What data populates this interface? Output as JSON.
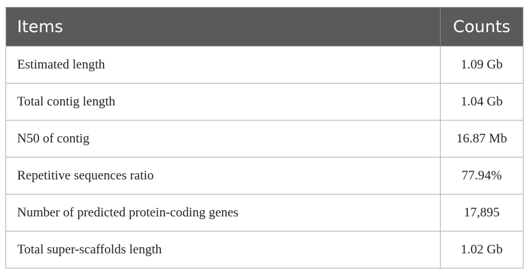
{
  "table": {
    "header": [
      "Items",
      "Counts"
    ],
    "rows": [
      [
        "Estimated length",
        "1.09 Gb"
      ],
      [
        "Total contig length",
        "1.04 Gb"
      ],
      [
        "N50 of contig",
        "16.87 Mb"
      ],
      [
        "Repetitive sequences ratio",
        "77.94%"
      ],
      [
        "Number of predicted protein-coding genes",
        "17,895"
      ],
      [
        "Total super-scaffolds length",
        "1.02 Gb"
      ]
    ]
  }
}
